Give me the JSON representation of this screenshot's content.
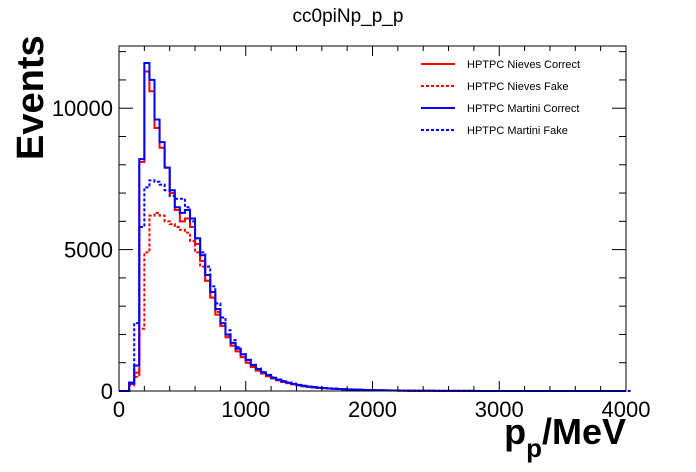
{
  "chart_data": {
    "type": "line",
    "title": "cc0piNp_p_p",
    "xlabel_main": "p",
    "xlabel_sub": "p",
    "xlabel_suffix": "/MeV",
    "ylabel": "Events",
    "xlim": [
      0,
      4000
    ],
    "ylim": [
      0,
      12200
    ],
    "bin_width": 40,
    "x_ticks": [
      0,
      1000,
      2000,
      3000,
      4000
    ],
    "y_ticks": [
      0,
      5000,
      10000
    ],
    "x_tick_labels": [
      "0",
      "1000",
      "2000",
      "3000",
      "4000"
    ],
    "y_tick_labels": [
      "0",
      "5000",
      "10000"
    ],
    "legend_position": "top-right",
    "colors": {
      "red": "#ff0000",
      "blue": "#0000ff"
    },
    "series": [
      {
        "name": "HPTPC Nieves Correct",
        "color": "#ff0000",
        "style": "solid",
        "values": [
          0,
          0,
          250,
          650,
          8100,
          11300,
          10600,
          9300,
          8600,
          7900,
          7000,
          6400,
          6000,
          6100,
          5800,
          5200,
          4600,
          3900,
          3300,
          2700,
          2300,
          1900,
          1600,
          1400,
          1200,
          1000,
          850,
          720,
          620,
          520,
          440,
          380,
          320,
          280,
          240,
          200,
          170,
          150,
          130,
          110,
          100,
          90,
          80,
          70,
          62,
          55,
          48,
          42,
          37,
          32,
          28,
          25,
          22,
          19,
          17,
          15,
          13,
          11,
          10,
          9,
          8,
          7,
          6,
          5,
          5,
          4,
          4,
          3,
          3,
          3,
          2,
          2,
          2,
          2,
          1,
          1,
          1,
          1,
          1,
          1,
          1,
          1,
          0,
          0,
          0,
          0,
          0,
          0,
          0,
          0,
          0,
          0,
          0,
          0,
          0,
          0,
          0,
          0,
          0,
          0
        ]
      },
      {
        "name": "HPTPC Nieves Fake",
        "color": "#ff0000",
        "style": "dotted",
        "values": [
          0,
          0,
          200,
          500,
          2200,
          4900,
          6200,
          6300,
          6200,
          6000,
          5900,
          5800,
          5700,
          5600,
          5300,
          4900,
          4400,
          3900,
          3300,
          2800,
          2350,
          1950,
          1650,
          1400,
          1200,
          1000,
          850,
          720,
          620,
          520,
          440,
          380,
          320,
          280,
          240,
          200,
          170,
          150,
          130,
          110,
          100,
          90,
          80,
          70,
          62,
          55,
          48,
          42,
          37,
          32,
          28,
          25,
          22,
          19,
          17,
          15,
          13,
          11,
          10,
          9,
          8,
          7,
          6,
          5,
          5,
          4,
          4,
          3,
          3,
          3,
          2,
          2,
          2,
          2,
          1,
          1,
          1,
          1,
          1,
          1,
          1,
          1,
          0,
          0,
          0,
          0,
          0,
          0,
          0,
          0,
          0,
          0,
          0,
          0,
          0,
          0,
          0,
          0,
          0,
          0
        ]
      },
      {
        "name": "HPTPC Martini Correct",
        "color": "#0000ff",
        "style": "solid",
        "values": [
          0,
          0,
          300,
          900,
          8200,
          11600,
          11000,
          9600,
          8800,
          7900,
          7100,
          6500,
          6300,
          6400,
          6100,
          5400,
          4800,
          4100,
          3500,
          2900,
          2400,
          2000,
          1700,
          1500,
          1300,
          1100,
          920,
          780,
          660,
          560,
          470,
          400,
          340,
          290,
          250,
          210,
          180,
          155,
          135,
          115,
          100,
          90,
          80,
          70,
          62,
          55,
          48,
          42,
          37,
          32,
          28,
          25,
          22,
          19,
          17,
          15,
          13,
          11,
          10,
          9,
          8,
          7,
          6,
          5,
          5,
          4,
          4,
          3,
          3,
          3,
          2,
          2,
          2,
          2,
          1,
          1,
          1,
          1,
          1,
          1,
          1,
          1,
          0,
          0,
          0,
          0,
          0,
          0,
          0,
          0,
          0,
          0,
          0,
          0,
          0,
          0,
          0,
          0,
          0,
          0
        ]
      },
      {
        "name": "HPTPC Martini Fake",
        "color": "#0000ff",
        "style": "dotted",
        "values": [
          0,
          0,
          250,
          2400,
          5800,
          7200,
          7450,
          7400,
          7300,
          7100,
          6900,
          6800,
          6800,
          6500,
          6000,
          5400,
          4900,
          4400,
          3700,
          3100,
          2600,
          2150,
          1800,
          1550,
          1300,
          1100,
          930,
          790,
          670,
          570,
          480,
          410,
          350,
          300,
          255,
          215,
          185,
          160,
          138,
          118,
          102,
          92,
          82,
          72,
          64,
          57,
          50,
          44,
          38,
          33,
          29,
          26,
          23,
          20,
          18,
          16,
          14,
          12,
          11,
          10,
          9,
          8,
          7,
          6,
          5,
          5,
          4,
          4,
          3,
          3,
          3,
          2,
          2,
          2,
          2,
          1,
          1,
          1,
          1,
          1,
          1,
          1,
          1,
          0,
          0,
          0,
          0,
          0,
          0,
          0,
          0,
          0,
          0,
          0,
          0,
          0,
          0,
          0,
          0,
          0,
          0
        ]
      }
    ]
  }
}
